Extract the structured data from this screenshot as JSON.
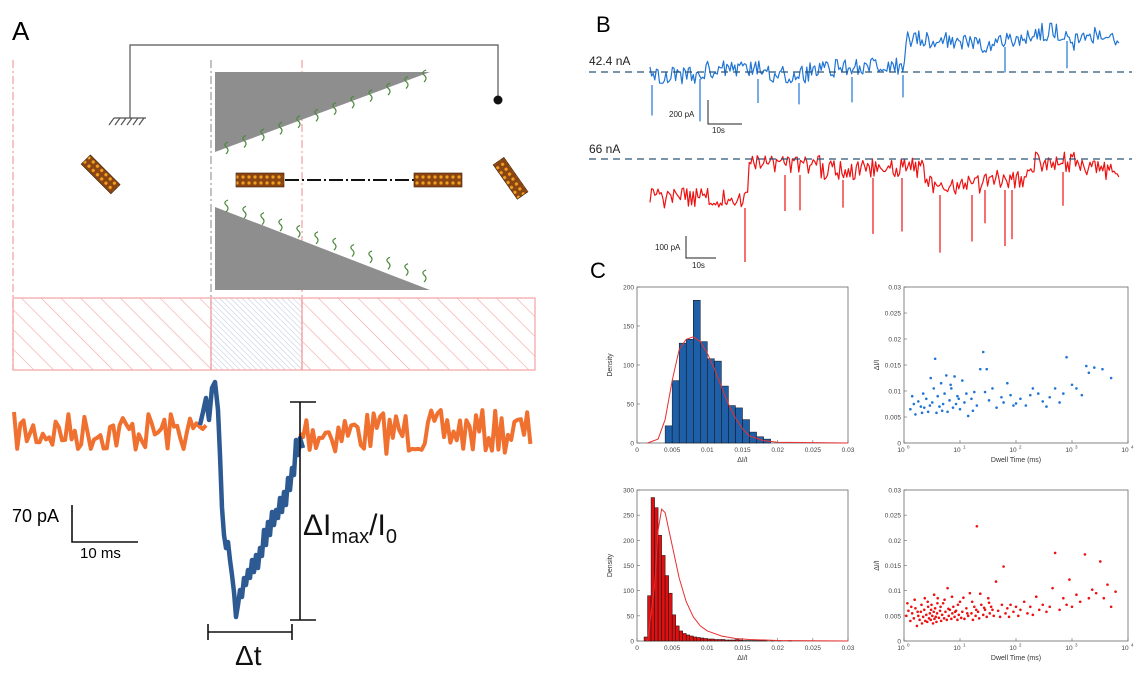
{
  "panels": {
    "a": {
      "letter": "A"
    },
    "b": {
      "letter": "B"
    },
    "c": {
      "letter": "C"
    }
  },
  "panel_a": {
    "scalebar_current": "70 pA",
    "scalebar_time": "10 ms",
    "amplitude_label": "ΔI",
    "amplitude_sub": "max",
    "amplitude_over": "/I",
    "amplitude_sub0": "0",
    "dwell_label": "Δt",
    "colors": {
      "baseline": "#f07030",
      "event": "#2d5a92",
      "pore": "#888888",
      "hatch": "#f4a4a4"
    }
  },
  "panel_b": {
    "traces": [
      {
        "baseline_label": "42.4 nA",
        "scalebar_current": "200 pA",
        "scalebar_time": "10s",
        "color": "#1f74d4"
      },
      {
        "baseline_label": "66 nA",
        "scalebar_current": "100 pA",
        "scalebar_time": "10s",
        "color": "#ee1111"
      }
    ]
  },
  "chart_data": [
    {
      "type": "bar",
      "panel": "C-top-left",
      "color": "#1f5fa8",
      "xlabel": "ΔI/I",
      "ylabel": "Density",
      "xlim": [
        0,
        0.03
      ],
      "ylim": [
        0,
        200
      ],
      "xticks": [
        "0",
        "0.005",
        "0.01",
        "0.015",
        "0.02",
        "0.025",
        "0.03"
      ],
      "yticks": [
        "0",
        "50",
        "100",
        "150",
        "200"
      ],
      "bin_width": 0.001,
      "bin_start": 0.004,
      "values": [
        22,
        80,
        128,
        133,
        183,
        130,
        108,
        105,
        73,
        48,
        45,
        30,
        14,
        8,
        5
      ],
      "fit_line": {
        "x": [
          0.0015,
          0.003,
          0.004,
          0.005,
          0.006,
          0.007,
          0.008,
          0.009,
          0.01,
          0.011,
          0.012,
          0.013,
          0.014,
          0.015,
          0.016,
          0.018,
          0.02,
          0.03
        ],
        "y": [
          0,
          5,
          30,
          80,
          120,
          133,
          136,
          130,
          115,
          95,
          72,
          50,
          32,
          18,
          9,
          3,
          1,
          0
        ]
      }
    },
    {
      "type": "scatter",
      "panel": "C-top-right",
      "color": "#1f74d4",
      "xlabel": "Dwell Time (ms)",
      "ylabel": "ΔI/I",
      "xscale": "log",
      "xlim": [
        1,
        10000
      ],
      "ylim": [
        0,
        0.03
      ],
      "xtick_base": [
        "10",
        "10",
        "10",
        "10",
        "10"
      ],
      "xtick_exp": [
        "0",
        "1",
        "2",
        "3",
        "4"
      ],
      "yticks": [
        "0",
        "0.005",
        "0.01",
        "0.015",
        "0.02",
        "0.025",
        "0.03"
      ],
      "points": [
        [
          1.3,
          0.0065
        ],
        [
          1.5,
          0.0075
        ],
        [
          1.6,
          0.0055
        ],
        [
          1.8,
          0.008
        ],
        [
          2,
          0.007
        ],
        [
          2.2,
          0.0095
        ],
        [
          2.3,
          0.0068
        ],
        [
          2.5,
          0.0085
        ],
        [
          2.7,
          0.006
        ],
        [
          3,
          0.0125
        ],
        [
          3.2,
          0.0078
        ],
        [
          3.4,
          0.0105
        ],
        [
          3.6,
          0.0162
        ],
        [
          3.8,
          0.0058
        ],
        [
          4,
          0.009
        ],
        [
          4.3,
          0.007
        ],
        [
          4.6,
          0.0115
        ],
        [
          5,
          0.0075
        ],
        [
          5.3,
          0.0095
        ],
        [
          5.7,
          0.013
        ],
        [
          6,
          0.006
        ],
        [
          6.5,
          0.0082
        ],
        [
          7,
          0.0105
        ],
        [
          7.5,
          0.0068
        ],
        [
          8,
          0.0128
        ],
        [
          8.5,
          0.0075
        ],
        [
          9,
          0.009
        ],
        [
          10,
          0.0065
        ],
        [
          11,
          0.012
        ],
        [
          12,
          0.0078
        ],
        [
          14,
          0.0052
        ],
        [
          16,
          0.0085
        ],
        [
          18,
          0.0098
        ],
        [
          20,
          0.0072
        ],
        [
          23,
          0.0142
        ],
        [
          26,
          0.0175
        ],
        [
          30,
          0.0142
        ],
        [
          33,
          0.0082
        ],
        [
          38,
          0.0105
        ],
        [
          45,
          0.0068
        ],
        [
          55,
          0.0088
        ],
        [
          70,
          0.0115
        ],
        [
          80,
          0.0092
        ],
        [
          100,
          0.0076
        ],
        [
          120,
          0.0085
        ],
        [
          150,
          0.0072
        ],
        [
          200,
          0.0105
        ],
        [
          250,
          0.0095
        ],
        [
          300,
          0.008
        ],
        [
          400,
          0.0088
        ],
        [
          500,
          0.0105
        ],
        [
          700,
          0.0095
        ],
        [
          800,
          0.0165
        ],
        [
          1000,
          0.0112
        ],
        [
          1200,
          0.0105
        ],
        [
          1500,
          0.0092
        ],
        [
          2000,
          0.0135
        ],
        [
          2500,
          0.0145
        ],
        [
          3500,
          0.0142
        ],
        [
          5000,
          0.0125
        ],
        [
          1.4,
          0.009
        ],
        [
          2.1,
          0.0058
        ],
        [
          2.9,
          0.0072
        ],
        [
          4.8,
          0.0062
        ],
        [
          6.8,
          0.0112
        ],
        [
          9.5,
          0.0085
        ],
        [
          13,
          0.0095
        ],
        [
          17,
          0.0062
        ],
        [
          28,
          0.0098
        ],
        [
          60,
          0.0078
        ],
        [
          90,
          0.0072
        ],
        [
          180,
          0.0092
        ],
        [
          350,
          0.007
        ],
        [
          600,
          0.0078
        ],
        [
          1800,
          0.0148
        ]
      ]
    },
    {
      "type": "bar",
      "panel": "C-bottom-left",
      "color": "#dd1111",
      "xlabel": "ΔI/I",
      "ylabel": "Density",
      "xlim": [
        0,
        0.03
      ],
      "ylim": [
        0,
        300
      ],
      "xticks": [
        "0",
        "0.005",
        "0.01",
        "0.015",
        "0.02",
        "0.025",
        "0.03"
      ],
      "yticks": [
        "0",
        "50",
        "100",
        "150",
        "200",
        "250",
        "300"
      ],
      "bin_width": 0.0005,
      "bin_start": 0.001,
      "values": [
        8,
        90,
        285,
        265,
        210,
        170,
        130,
        95,
        52,
        30,
        20,
        15,
        12,
        10,
        8,
        7,
        6,
        5,
        4,
        4,
        3,
        3,
        3,
        2,
        2,
        2,
        3,
        2,
        1,
        1,
        1,
        1,
        2,
        1,
        1,
        0,
        1,
        0,
        1,
        0,
        0,
        1,
        0,
        0
      ],
      "fit_line": {
        "x": [
          0.0015,
          0.0025,
          0.003,
          0.0035,
          0.004,
          0.005,
          0.006,
          0.007,
          0.008,
          0.009,
          0.01,
          0.012,
          0.014,
          0.016,
          0.02,
          0.03
        ],
        "y": [
          0,
          110,
          220,
          262,
          255,
          190,
          125,
          78,
          48,
          30,
          20,
          10,
          5,
          3,
          1,
          0
        ]
      }
    },
    {
      "type": "scatter",
      "panel": "C-bottom-right",
      "color": "#ee1111",
      "xlabel": "Dwell Time (ms)",
      "ylabel": "ΔI/I",
      "xscale": "log",
      "xlim": [
        1,
        10000
      ],
      "ylim": [
        0,
        0.03
      ],
      "xtick_base": [
        "10",
        "10",
        "10",
        "10",
        "10"
      ],
      "xtick_exp": [
        "0",
        "1",
        "2",
        "3",
        "4"
      ],
      "yticks": [
        "0",
        "0.005",
        "0.01",
        "0.015",
        "0.02",
        "0.025",
        "0.03"
      ],
      "points": [
        [
          1.1,
          0.005
        ],
        [
          1.2,
          0.006
        ],
        [
          1.3,
          0.004
        ],
        [
          1.4,
          0.0055
        ],
        [
          1.5,
          0.0045
        ],
        [
          1.6,
          0.0065
        ],
        [
          1.7,
          0.003
        ],
        [
          1.8,
          0.005
        ],
        [
          1.9,
          0.0042
        ],
        [
          2,
          0.0058
        ],
        [
          2.1,
          0.0035
        ],
        [
          2.2,
          0.0048
        ],
        [
          2.3,
          0.0062
        ],
        [
          2.4,
          0.004
        ],
        [
          2.5,
          0.0052
        ],
        [
          2.6,
          0.0038
        ],
        [
          2.7,
          0.0068
        ],
        [
          2.8,
          0.0045
        ],
        [
          2.9,
          0.0055
        ],
        [
          3,
          0.0042
        ],
        [
          3.1,
          0.0072
        ],
        [
          3.2,
          0.005
        ],
        [
          3.3,
          0.0035
        ],
        [
          3.4,
          0.0058
        ],
        [
          3.5,
          0.0044
        ],
        [
          3.6,
          0.0065
        ],
        [
          3.7,
          0.0048
        ],
        [
          3.8,
          0.0038
        ],
        [
          3.9,
          0.0055
        ],
        [
          4,
          0.0085
        ],
        [
          4.2,
          0.0046
        ],
        [
          4.4,
          0.006
        ],
        [
          4.6,
          0.004
        ],
        [
          4.8,
          0.0052
        ],
        [
          5,
          0.0075
        ],
        [
          5.2,
          0.0045
        ],
        [
          5.5,
          0.0058
        ],
        [
          5.8,
          0.0042
        ],
        [
          6,
          0.0105
        ],
        [
          6.3,
          0.005
        ],
        [
          6.6,
          0.0062
        ],
        [
          7,
          0.0044
        ],
        [
          7.3,
          0.0055
        ],
        [
          7.6,
          0.0068
        ],
        [
          8,
          0.0048
        ],
        [
          8.5,
          0.006
        ],
        [
          9,
          0.0042
        ],
        [
          9.5,
          0.0052
        ],
        [
          10,
          0.0078
        ],
        [
          10.5,
          0.0046
        ],
        [
          11,
          0.0058
        ],
        [
          12,
          0.0044
        ],
        [
          13,
          0.0065
        ],
        [
          14,
          0.005
        ],
        [
          15,
          0.0095
        ],
        [
          16,
          0.0055
        ],
        [
          17,
          0.0042
        ],
        [
          18,
          0.0068
        ],
        [
          19,
          0.005
        ],
        [
          20,
          0.0228
        ],
        [
          21,
          0.0058
        ],
        [
          22,
          0.0045
        ],
        [
          24,
          0.0072
        ],
        [
          26,
          0.0052
        ],
        [
          28,
          0.0062
        ],
        [
          30,
          0.0048
        ],
        [
          32,
          0.0085
        ],
        [
          34,
          0.0055
        ],
        [
          36,
          0.0068
        ],
        [
          40,
          0.005
        ],
        [
          44,
          0.0118
        ],
        [
          48,
          0.006
        ],
        [
          52,
          0.0048
        ],
        [
          56,
          0.0072
        ],
        [
          60,
          0.0148
        ],
        [
          65,
          0.0055
        ],
        [
          70,
          0.0065
        ],
        [
          75,
          0.0048
        ],
        [
          80,
          0.0072
        ],
        [
          90,
          0.0058
        ],
        [
          100,
          0.0068
        ],
        [
          110,
          0.005
        ],
        [
          120,
          0.0062
        ],
        [
          140,
          0.0078
        ],
        [
          160,
          0.0055
        ],
        [
          180,
          0.0068
        ],
        [
          200,
          0.0052
        ],
        [
          230,
          0.0088
        ],
        [
          260,
          0.0062
        ],
        [
          300,
          0.0072
        ],
        [
          350,
          0.0058
        ],
        [
          400,
          0.0068
        ],
        [
          450,
          0.0105
        ],
        [
          500,
          0.0175
        ],
        [
          600,
          0.0062
        ],
        [
          700,
          0.0085
        ],
        [
          800,
          0.0072
        ],
        [
          900,
          0.0122
        ],
        [
          1000,
          0.0068
        ],
        [
          1200,
          0.0092
        ],
        [
          1400,
          0.0078
        ],
        [
          1700,
          0.0172
        ],
        [
          2000,
          0.0085
        ],
        [
          2300,
          0.0102
        ],
        [
          2700,
          0.0095
        ],
        [
          3200,
          0.0158
        ],
        [
          3700,
          0.0085
        ],
        [
          4300,
          0.0112
        ],
        [
          5000,
          0.0068
        ],
        [
          6000,
          0.0098
        ],
        [
          1.15,
          0.0075
        ],
        [
          1.35,
          0.0068
        ],
        [
          1.55,
          0.0082
        ],
        [
          1.75,
          0.0058
        ],
        [
          2.05,
          0.0072
        ],
        [
          2.35,
          0.0085
        ],
        [
          2.65,
          0.0078
        ],
        [
          3.05,
          0.0062
        ],
        [
          3.45,
          0.0092
        ],
        [
          3.95,
          0.0075
        ],
        [
          4.5,
          0.0068
        ],
        [
          5.3,
          0.0082
        ],
        [
          6.2,
          0.0064
        ],
        [
          7.2,
          0.0088
        ],
        [
          8.2,
          0.0058
        ],
        [
          9.2,
          0.0072
        ],
        [
          11.5,
          0.0086
        ],
        [
          13.5,
          0.0055
        ],
        [
          16.5,
          0.0078
        ],
        [
          19.5,
          0.0062
        ],
        [
          23,
          0.0094
        ],
        [
          27,
          0.0066
        ],
        [
          33,
          0.0076
        ],
        [
          38,
          0.0062
        ]
      ]
    }
  ]
}
